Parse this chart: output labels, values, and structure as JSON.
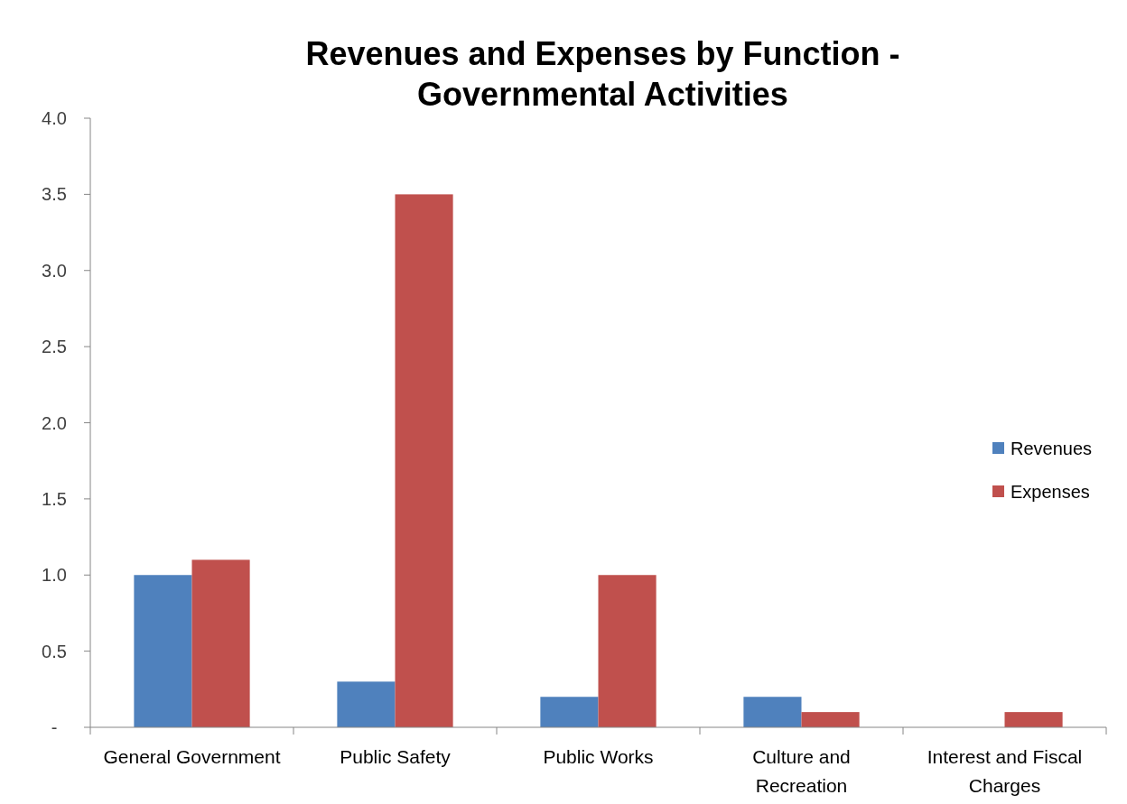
{
  "chart_data": {
    "type": "bar",
    "title": "Revenues and Expenses by Function - Governmental Activities",
    "categories": [
      "General Government",
      "Public Safety",
      "Public Works",
      "Culture and Recreation",
      "Interest and Fiscal Charges"
    ],
    "series": [
      {
        "name": "Revenues",
        "color": "#4f81bd",
        "values": [
          1.0,
          0.3,
          0.2,
          0.2,
          0
        ]
      },
      {
        "name": "Expenses",
        "color": "#c0504d",
        "values": [
          1.1,
          3.5,
          1.0,
          0.1,
          0.1
        ]
      }
    ],
    "ylim": [
      0,
      4
    ],
    "yticks": [
      {
        "value": 0,
        "label": "-"
      },
      {
        "value": 0.5,
        "label": "0.5"
      },
      {
        "value": 1,
        "label": "1.0"
      },
      {
        "value": 1.5,
        "label": "1.5"
      },
      {
        "value": 2,
        "label": "2.0"
      },
      {
        "value": 2.5,
        "label": "2.5"
      },
      {
        "value": 3,
        "label": "3.0"
      },
      {
        "value": 3.5,
        "label": "3.5"
      },
      {
        "value": 4,
        "label": "4.0"
      }
    ],
    "grid": false,
    "legend": "right"
  }
}
